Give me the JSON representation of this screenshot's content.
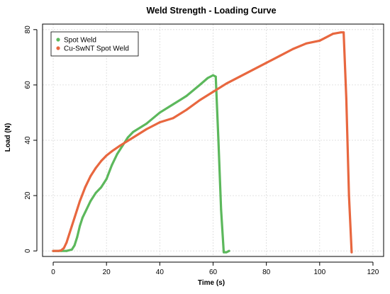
{
  "chart_data": {
    "type": "line",
    "title": "Weld Strength - Loading Curve",
    "xlabel": "Time (s)",
    "ylabel": "Load (N)",
    "xlim": [
      -4,
      124
    ],
    "ylim": [
      -2,
      82
    ],
    "xticks": [
      0,
      20,
      40,
      60,
      80,
      100,
      120
    ],
    "yticks": [
      0,
      20,
      40,
      60,
      80
    ],
    "xtick_labels": [
      "0",
      "20",
      "40",
      "60",
      "80",
      "100",
      "120"
    ],
    "ytick_labels": [
      "0",
      "20",
      "40",
      "60",
      "80"
    ],
    "grid": true,
    "legend_position": "top-left",
    "series": [
      {
        "name": "Spot Weld",
        "color": "#5cb85c",
        "x": [
          0,
          3,
          5,
          7,
          8,
          9,
          10,
          11,
          12,
          14,
          16,
          18,
          20,
          22,
          24,
          26,
          28,
          30,
          35,
          40,
          45,
          50,
          55,
          58,
          60,
          61,
          62,
          63,
          64,
          65,
          66
        ],
        "y": [
          0,
          0,
          0,
          0.5,
          2,
          5,
          9,
          12,
          14,
          18,
          21,
          23,
          26,
          31,
          35,
          38,
          41,
          43,
          46,
          50,
          53,
          56,
          60,
          62.5,
          63.5,
          63,
          40,
          15,
          -0.5,
          -0.5,
          0
        ]
      },
      {
        "name": "Cu-SwNT Spot Weld",
        "color": "#e8673f",
        "x": [
          0,
          2,
          3,
          4,
          5,
          6,
          7,
          8,
          9,
          10,
          12,
          14,
          16,
          18,
          20,
          22,
          25,
          30,
          35,
          40,
          45,
          50,
          55,
          60,
          65,
          70,
          75,
          80,
          85,
          90,
          95,
          100,
          102,
          105,
          108,
          109,
          110,
          111,
          112
        ],
        "y": [
          0,
          0,
          0.2,
          1,
          3,
          6,
          9,
          12,
          15,
          18,
          23,
          27,
          30,
          32.5,
          34.5,
          36,
          38,
          41,
          44,
          46.5,
          48,
          51,
          54.5,
          57.5,
          60.5,
          63,
          65.5,
          68,
          70.5,
          73,
          75,
          76,
          77,
          78.5,
          79,
          79,
          55,
          20,
          -0.5
        ]
      }
    ]
  }
}
